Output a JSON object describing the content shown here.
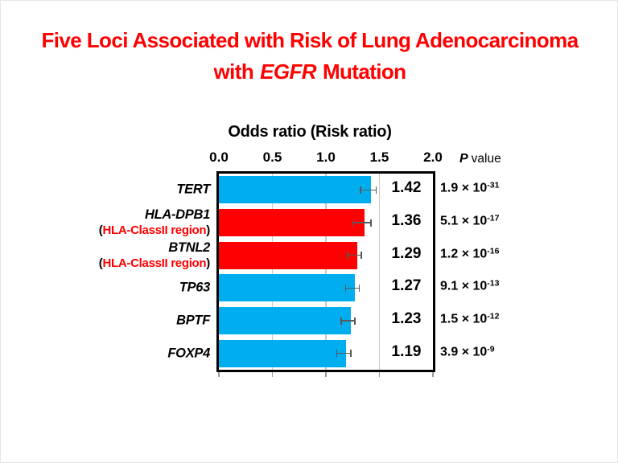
{
  "slide": {
    "title": {
      "line1": "Five Loci Associated with Risk of Lung Adenocarcinoma",
      "line2_prefix": "with",
      "line2_gene": "EGFR",
      "line2_suffix": "Mutation",
      "color": "#FF0000"
    }
  },
  "chart": {
    "heading": "Odds ratio (Risk ratio)",
    "p_header": {
      "p": "P",
      "rest": "value"
    }
  },
  "chart_data": {
    "type": "bar",
    "orientation": "horizontal",
    "title": "Odds ratio (Risk ratio)",
    "xlabel": "Odds ratio (Risk ratio)",
    "ylabel": "",
    "xlim": [
      0,
      2
    ],
    "x_tick_labels": [
      "0.0",
      "0.5",
      "1.0",
      "1.5",
      "2.0"
    ],
    "gridlines_at": [
      0.5,
      1.0,
      1.5
    ],
    "grid": true,
    "legend": "none",
    "times_symbol": "×",
    "paren_open": "(",
    "paren_close": ")",
    "categories": [
      "TERT",
      "HLA-DPB1 (HLA-ClassII region)",
      "BTNL2 (HLA-ClassII region)",
      "TP63",
      "BPTF",
      "FOXP4"
    ],
    "values": [
      1.42,
      1.36,
      1.29,
      1.27,
      1.23,
      1.19
    ],
    "p_values_text": [
      "1.9 × 10^-31",
      "5.1 × 10^-17",
      "1.2 × 10^-16",
      "9.1 × 10^-13",
      "1.5 × 10^-12",
      "3.9 × 10^-9"
    ],
    "colors": {
      "blue_bar": "#00AEEF",
      "red_bar": "#FF0000",
      "region_text_red": "#FF0000",
      "gridline": "#C9C9C9",
      "error_bar": "#595959",
      "plot_border": "#000000",
      "axis_tick": "#9B9B9B"
    },
    "rows": [
      {
        "gene": "TERT",
        "region_inner": "",
        "value": 1.42,
        "value_label": "1.42",
        "ci_half_est": 0.08,
        "p_mantissa": "1.9",
        "p_exponent": "-31",
        "color_key": "blue_bar"
      },
      {
        "gene": "HLA-DPB1",
        "region_inner": "HLA-ClassII region",
        "value": 1.36,
        "value_label": "1.36",
        "ci_half_est": 0.09,
        "p_mantissa": "5.1",
        "p_exponent": "-17",
        "color_key": "red_bar"
      },
      {
        "gene": "BTNL2",
        "region_inner": "HLA-ClassII region",
        "value": 1.29,
        "value_label": "1.29",
        "ci_half_est": 0.07,
        "p_mantissa": "1.2",
        "p_exponent": "-16",
        "color_key": "red_bar"
      },
      {
        "gene": "TP63",
        "region_inner": "",
        "value": 1.27,
        "value_label": "1.27",
        "ci_half_est": 0.07,
        "p_mantissa": "9.1",
        "p_exponent": "-13",
        "color_key": "blue_bar"
      },
      {
        "gene": "BPTF",
        "region_inner": "",
        "value": 1.23,
        "value_label": "1.23",
        "ci_half_est": 0.07,
        "p_mantissa": "1.5",
        "p_exponent": "-12",
        "color_key": "blue_bar"
      },
      {
        "gene": "FOXP4",
        "region_inner": "",
        "value": 1.19,
        "value_label": "1.19",
        "ci_half_est": 0.07,
        "p_mantissa": "3.9",
        "p_exponent": "-9",
        "color_key": "blue_bar"
      }
    ]
  }
}
